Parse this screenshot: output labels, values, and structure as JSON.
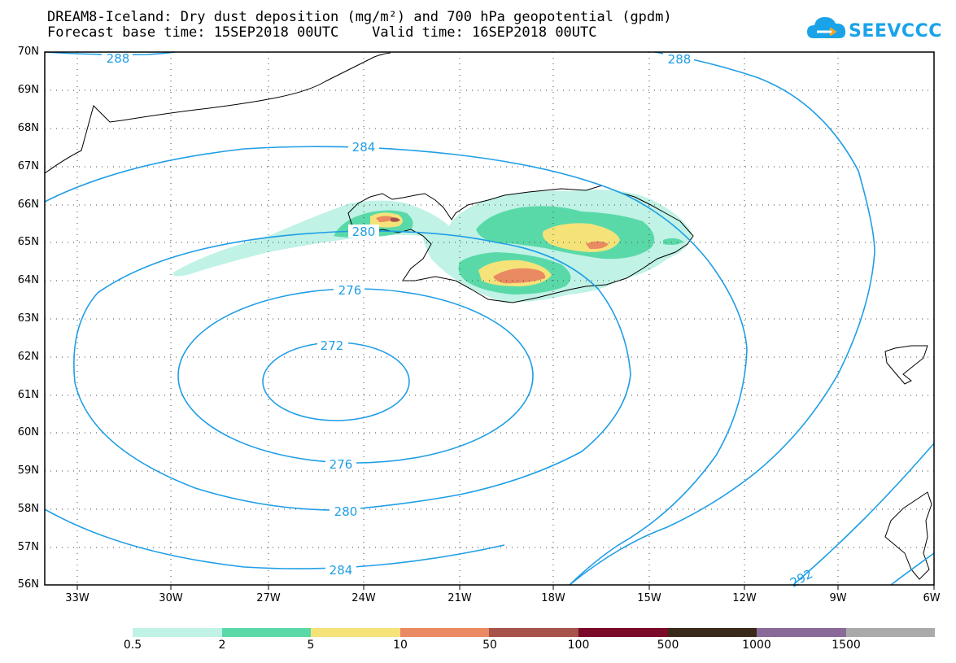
{
  "title": {
    "line1": "DREAM8-Iceland: Dry dust deposition (mg/m²) and 700 hPa geopotential (gpdm)",
    "line2": "Forecast base time: 15SEP2018 00UTC    Valid time: 16SEP2018 00UTC"
  },
  "logo": {
    "text": "SEEVCCC",
    "icon": "cloud-icon"
  },
  "map": {
    "region": "Iceland and North Atlantic",
    "lon_range": [
      -34.2,
      -6
    ],
    "lat_range": [
      56,
      70
    ],
    "lat_labels": [
      "70N",
      "69N",
      "68N",
      "67N",
      "66N",
      "65N",
      "64N",
      "63N",
      "62N",
      "61N",
      "60N",
      "59N",
      "58N",
      "57N",
      "56N"
    ],
    "lon_labels": [
      "33W",
      "30W",
      "27W",
      "24W",
      "21W",
      "18W",
      "15W",
      "12W",
      "9W",
      "6W"
    ],
    "gridlines": "dotted",
    "contour_labels": [
      "288",
      "288",
      "284",
      "280",
      "276",
      "272",
      "276",
      "280",
      "284",
      "292",
      "288"
    ],
    "geopotential_min_center": "61.4N 24.9W",
    "dust_hotspots": "Westfjords and south-central / east Iceland"
  },
  "colorbar": {
    "ticks": [
      "0.5",
      "2",
      "5",
      "10",
      "50",
      "100",
      "500",
      "1000",
      "1500"
    ],
    "colors": [
      "#c0f2e6",
      "#5ad9a8",
      "#f5e37a",
      "#ea8a62",
      "#a8524c",
      "#7a0a28",
      "#3a2a1a",
      "#8a6a99",
      "#aaaaaa"
    ]
  }
}
